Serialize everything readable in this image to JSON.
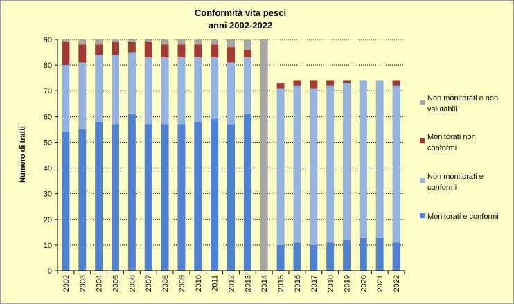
{
  "chart_data": {
    "type": "bar",
    "stacked": true,
    "title": [
      "Conformità vita pesci",
      "anni 2002-2022"
    ],
    "ylabel": "Numero di tratti",
    "xlabel": "",
    "ylim": [
      0,
      90
    ],
    "yticks": [
      0,
      10,
      20,
      30,
      40,
      50,
      60,
      70,
      80,
      90
    ],
    "grid": "horizontal-dotted",
    "legend_position": "right",
    "categories": [
      "2002",
      "2003",
      "2004",
      "2005",
      "2006",
      "2007",
      "2008",
      "2009",
      "2010",
      "2011",
      "2012",
      "2013",
      "2014",
      "2015",
      "2016",
      "2017",
      "2018",
      "2019",
      "2020",
      "2021",
      "2022"
    ],
    "series": [
      {
        "name": "Monitorati e conformi",
        "color": "#4f81d4",
        "values": [
          54,
          55,
          58,
          57,
          61,
          57,
          57,
          57,
          58,
          59,
          57,
          61,
          0,
          10,
          11,
          10,
          11,
          12,
          13,
          13,
          11
        ]
      },
      {
        "name": "Non monitorati e conformi",
        "color": "#95b3e0",
        "values": [
          26,
          26,
          26,
          27,
          24,
          26,
          26,
          26,
          25,
          24,
          24,
          22,
          0,
          61,
          61,
          61,
          61,
          61,
          61,
          61,
          61
        ]
      },
      {
        "name": "Monitorati non conformi",
        "color": "#a33a35",
        "values": [
          9,
          7,
          4,
          5,
          4,
          6,
          5,
          5,
          5,
          5,
          6,
          3,
          0,
          2,
          2,
          3,
          2,
          1,
          0,
          0,
          2
        ]
      },
      {
        "name": "Non monitorati e non valutabili",
        "color": "#a6a6a6",
        "values": [
          1,
          2,
          2,
          1,
          1,
          1,
          2,
          2,
          2,
          2,
          3,
          4,
          90,
          0,
          0,
          0,
          0,
          0,
          0,
          0,
          0
        ]
      }
    ],
    "legend": [
      {
        "series": 3,
        "lines": [
          "Non monitorati e non",
          "valutabili"
        ]
      },
      {
        "series": 2,
        "lines": [
          "Monitorati non",
          "conformi"
        ]
      },
      {
        "series": 1,
        "lines": [
          "Non monitorati e",
          "conformi"
        ]
      },
      {
        "series": 0,
        "lines": [
          "Monitorati e conformi"
        ]
      }
    ]
  }
}
